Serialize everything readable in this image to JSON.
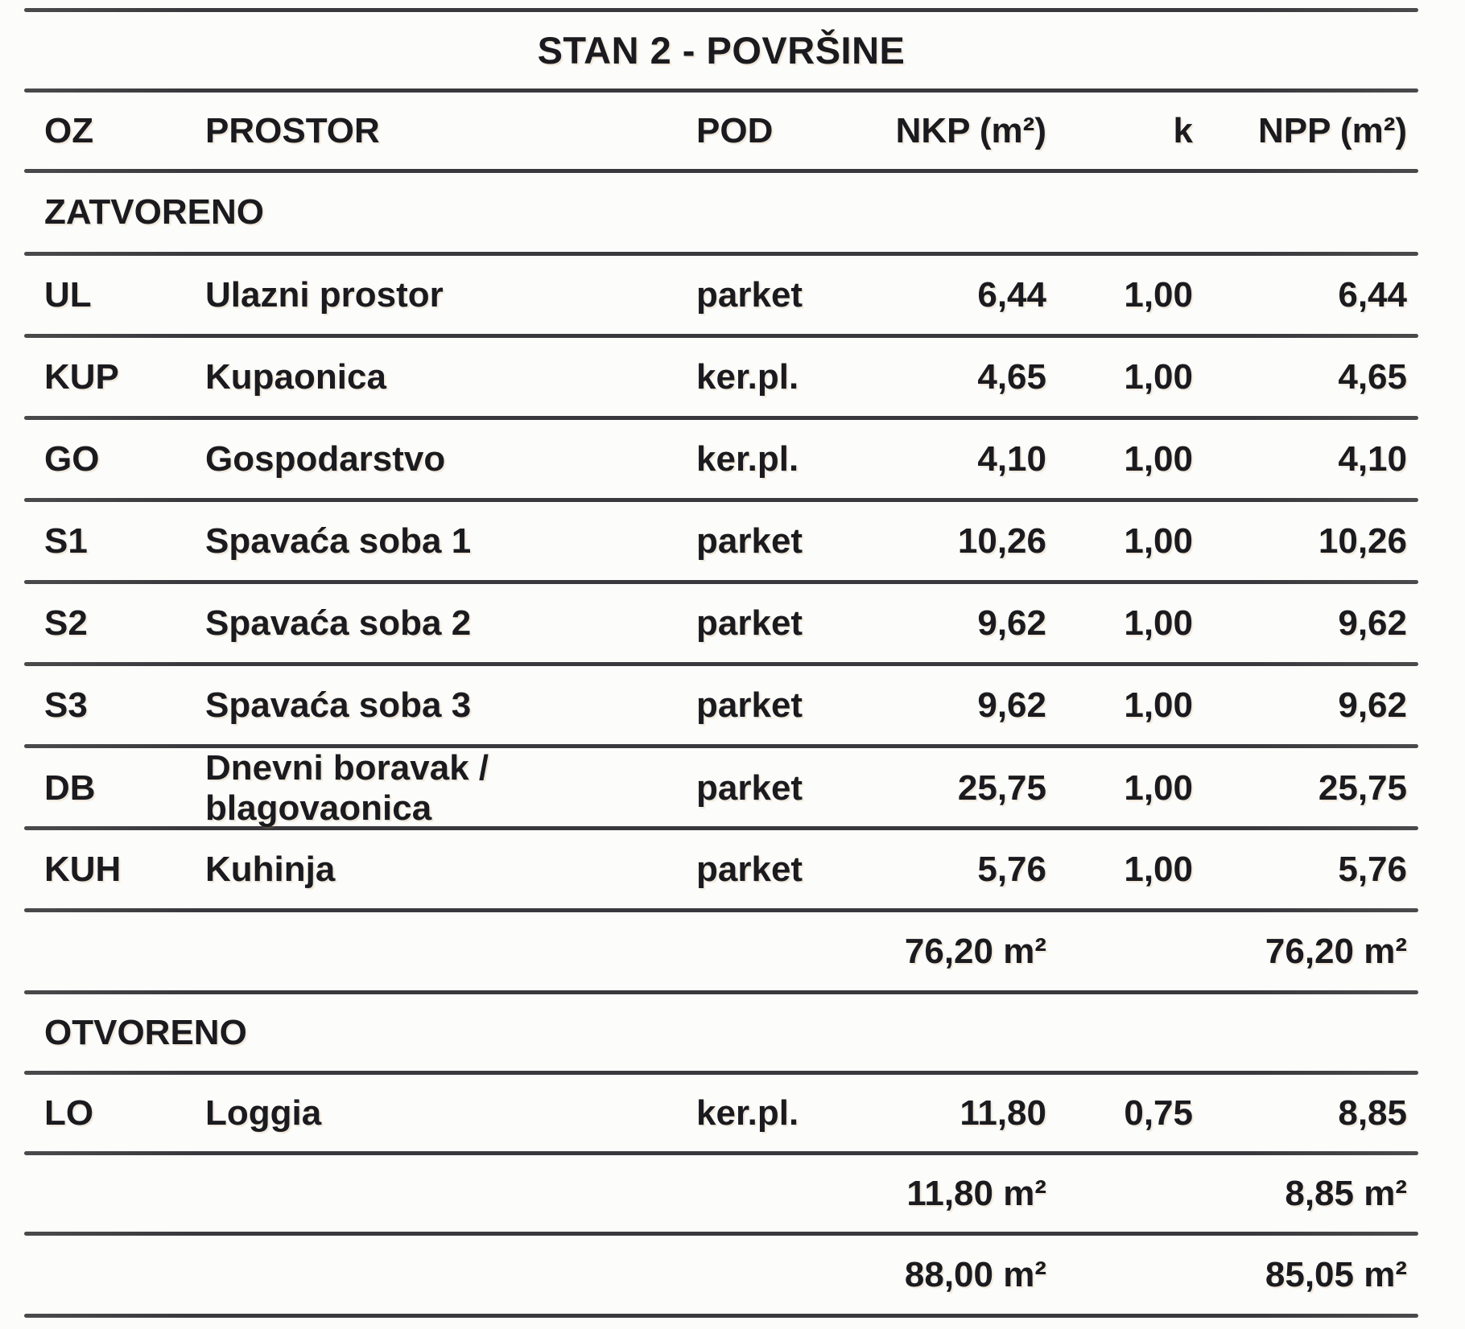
{
  "title": "STAN 2 - POVRŠINE",
  "columns": {
    "oz": "OZ",
    "prostor": "PROSTOR",
    "pod": "POD",
    "nkp": "NKP (m²)",
    "k": "k",
    "npp": "NPP (m²)"
  },
  "sections": [
    {
      "label": "ZATVORENO",
      "rows": [
        {
          "oz": "UL",
          "prostor": "Ulazni prostor",
          "pod": "parket",
          "nkp": "6,44",
          "k": "1,00",
          "npp": "6,44"
        },
        {
          "oz": "KUP",
          "prostor": "Kupaonica",
          "pod": "ker.pl.",
          "nkp": "4,65",
          "k": "1,00",
          "npp": "4,65"
        },
        {
          "oz": "GO",
          "prostor": "Gospodarstvo",
          "pod": "ker.pl.",
          "nkp": "4,10",
          "k": "1,00",
          "npp": "4,10"
        },
        {
          "oz": "S1",
          "prostor": "Spavaća soba 1",
          "pod": "parket",
          "nkp": "10,26",
          "k": "1,00",
          "npp": "10,26"
        },
        {
          "oz": "S2",
          "prostor": "Spavaća soba 2",
          "pod": "parket",
          "nkp": "9,62",
          "k": "1,00",
          "npp": "9,62"
        },
        {
          "oz": "S3",
          "prostor": "Spavaća soba 3",
          "pod": "parket",
          "nkp": "9,62",
          "k": "1,00",
          "npp": "9,62"
        },
        {
          "oz": "DB",
          "prostor": "Dnevni boravak / blagovaonica",
          "pod": "parket",
          "nkp": "25,75",
          "k": "1,00",
          "npp": "25,75"
        },
        {
          "oz": "KUH",
          "prostor": "Kuhinja",
          "pod": "parket",
          "nkp": "5,76",
          "k": "1,00",
          "npp": "5,76"
        }
      ],
      "subtotal": {
        "nkp": "76,20 m²",
        "npp": "76,20 m²"
      }
    },
    {
      "label": "OTVORENO",
      "rows": [
        {
          "oz": "LO",
          "prostor": "Loggia",
          "pod": "ker.pl.",
          "nkp": "11,80",
          "k": "0,75",
          "npp": "8,85"
        }
      ],
      "subtotal": {
        "nkp": "11,80 m²",
        "npp": "8,85 m²"
      }
    }
  ],
  "total": {
    "nkp": "88,00 m²",
    "npp": "85,05 m²"
  }
}
